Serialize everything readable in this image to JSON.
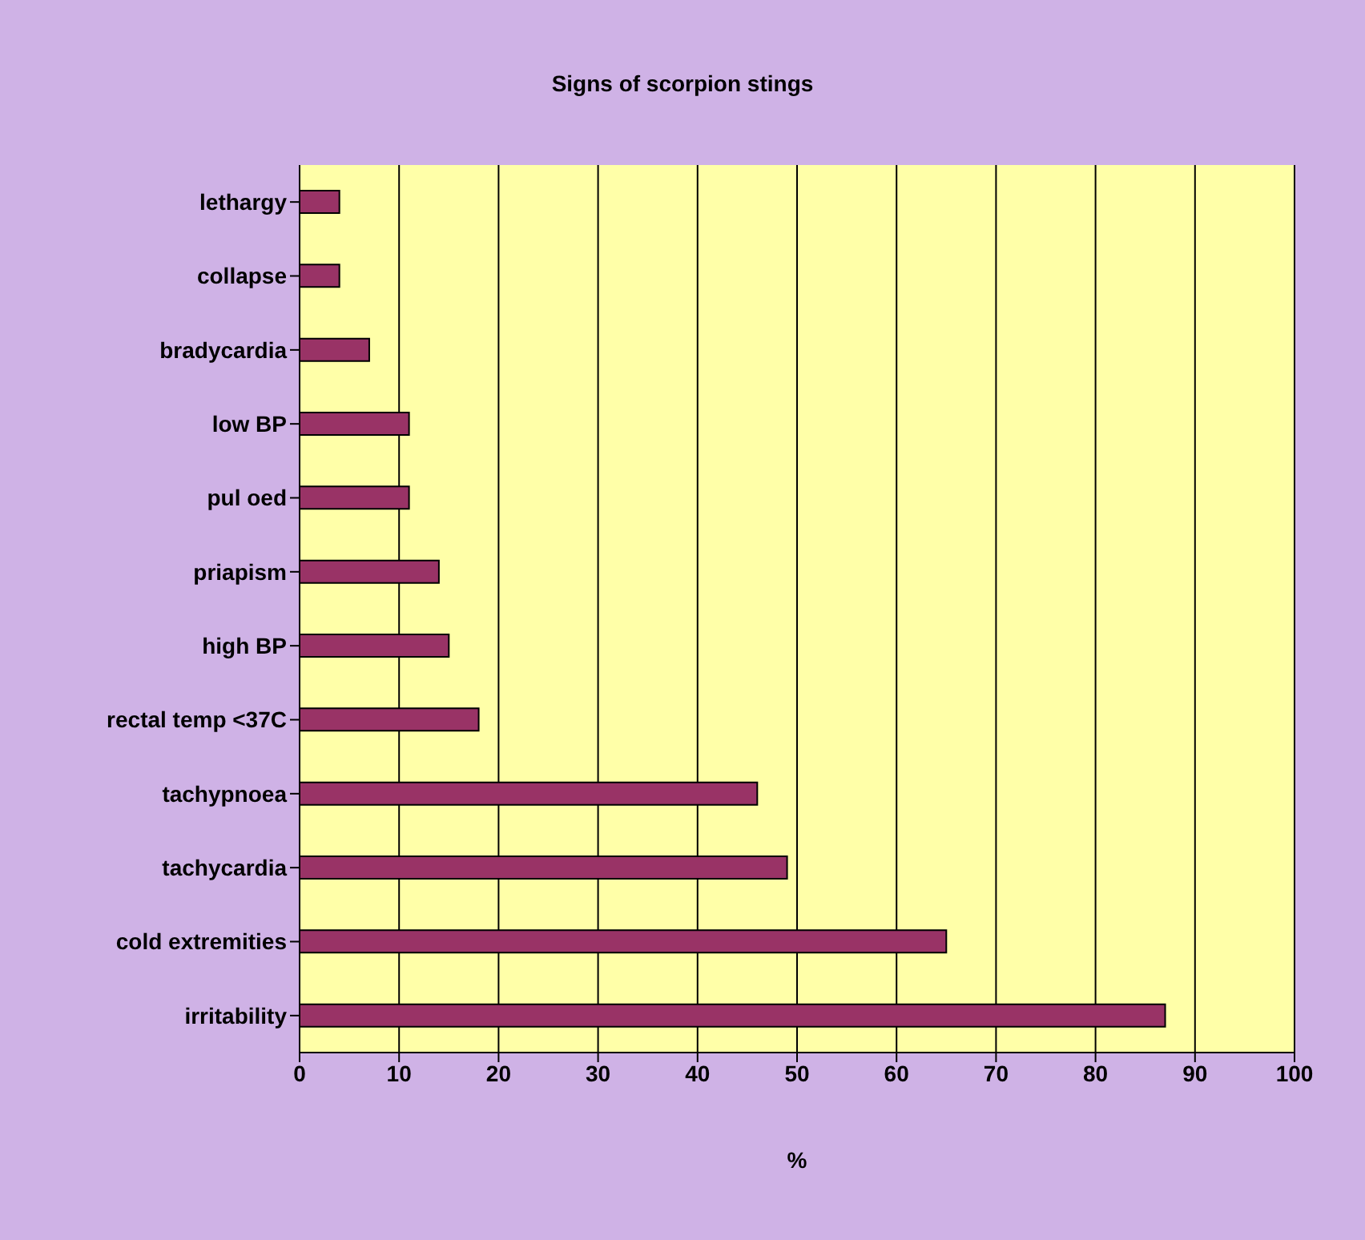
{
  "chart_data": {
    "type": "bar",
    "orientation": "horizontal",
    "title": "Signs of scorpion stings",
    "xlabel": "%",
    "categories": [
      "lethargy",
      "collapse",
      "bradycardia",
      "low BP",
      "pul oed",
      "priapism",
      "high BP",
      "rectal temp <37C",
      "tachypnoea",
      "tachycardia",
      "cold extremities",
      "irritability"
    ],
    "values": [
      4,
      4,
      7,
      11,
      11,
      14,
      15,
      18,
      46,
      49,
      65,
      87
    ],
    "color": "#993366",
    "xlim": [
      0,
      100
    ],
    "xticks": [
      0,
      10,
      20,
      30,
      40,
      50,
      60,
      70,
      80,
      90,
      100
    ],
    "grid": "x",
    "legend": false
  }
}
